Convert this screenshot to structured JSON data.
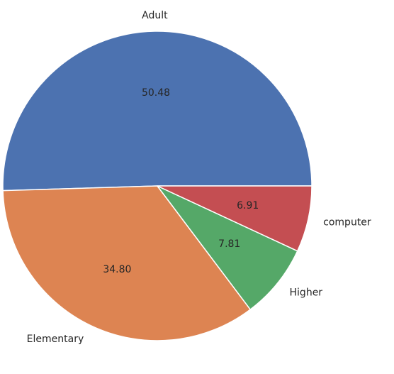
{
  "chart_data": {
    "type": "pie",
    "categories": [
      "Adult",
      "Elementary",
      "Higher",
      "computer"
    ],
    "values": [
      50.48,
      34.8,
      7.81,
      6.91
    ],
    "value_labels": [
      "50.48",
      "34.80",
      "7.81",
      "6.91"
    ],
    "colors": [
      "#4c72b0",
      "#dd8452",
      "#55a868",
      "#c44e52"
    ],
    "start_angle_deg": 0,
    "direction": "counterclockwise",
    "legend": "none"
  }
}
